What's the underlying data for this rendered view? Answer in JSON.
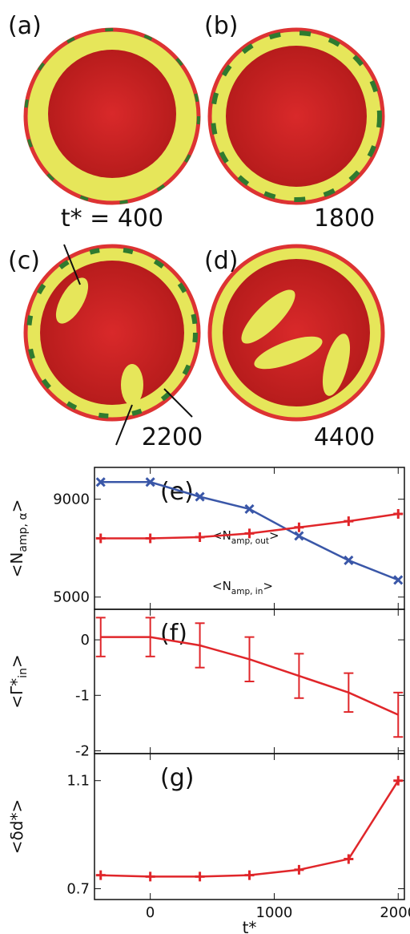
{
  "figure": {
    "panel_labels": [
      "(a)",
      "(b)",
      "(c)",
      "(d)"
    ],
    "times": [
      "t* = 400",
      "1800",
      "2200",
      "4400"
    ]
  },
  "chart_data": [
    {
      "type": "line",
      "panel_label": "(e)",
      "ylabel": [
        "<N",
        "amp, α",
        ">"
      ],
      "x": [
        -400,
        0,
        400,
        800,
        1200,
        1600,
        2000
      ],
      "xlim": [
        -450,
        2050
      ],
      "ylim": [
        4500,
        10300
      ],
      "yticks": [
        5000,
        9000
      ],
      "series": [
        {
          "name": [
            "<N",
            "amp, out",
            ">"
          ],
          "color": "#3a57a8",
          "marker": "x",
          "values": [
            9700,
            9700,
            9100,
            8600,
            7500,
            6500,
            5700
          ]
        },
        {
          "name": [
            "<N",
            "amp, in",
            ">"
          ],
          "color": "#e0262a",
          "marker": "+",
          "values": [
            7400,
            7400,
            7450,
            7600,
            7850,
            8100,
            8400
          ]
        }
      ]
    },
    {
      "type": "errorbar",
      "panel_label": "(f)",
      "ylabel": [
        "<Γ*",
        "in",
        ">"
      ],
      "x": [
        -400,
        0,
        400,
        800,
        1200,
        1600,
        2000
      ],
      "xlim": [
        -450,
        2050
      ],
      "ylim": [
        -2.05,
        0.55
      ],
      "yticks": [
        -2,
        -1,
        0
      ],
      "series": [
        {
          "color": "#e0262a",
          "values": [
            0.05,
            0.05,
            -0.1,
            -0.35,
            -0.65,
            -0.95,
            -1.35
          ],
          "errors": [
            0.35,
            0.35,
            0.4,
            0.4,
            0.4,
            0.35,
            0.4
          ]
        }
      ]
    },
    {
      "type": "line",
      "panel_label": "(g)",
      "ylabel": "<δd*>",
      "xlabel": "t*",
      "x": [
        -400,
        0,
        400,
        800,
        1200,
        1600,
        2000
      ],
      "xlim": [
        -450,
        2050
      ],
      "xticks": [
        0,
        1000,
        2000
      ],
      "ylim": [
        0.66,
        1.2
      ],
      "yticks": [
        0.7,
        1.1
      ],
      "series": [
        {
          "color": "#e0262a",
          "marker": "+",
          "values": [
            0.75,
            0.745,
            0.745,
            0.75,
            0.77,
            0.81,
            1.1
          ]
        }
      ]
    }
  ]
}
